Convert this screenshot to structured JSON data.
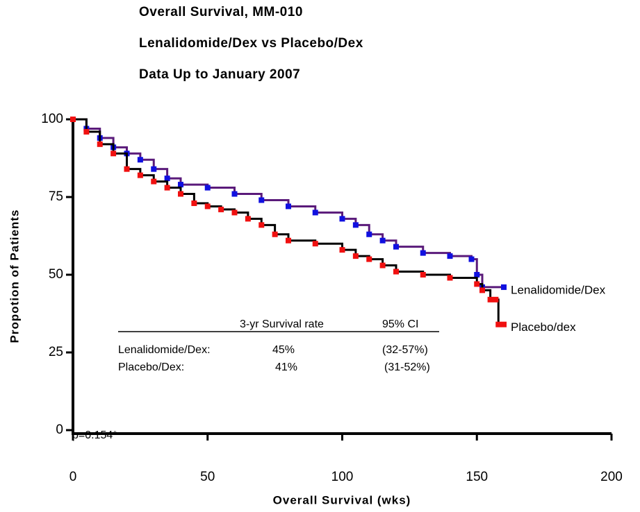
{
  "chart_data": {
    "type": "step",
    "title": "Overall  Survival,  MM-010",
    "subtitle": "Lenalidomide/Dex  vs Placebo/Dex",
    "subtitle2": "Data Up to January 2007",
    "x_label": "Overall  Survival  (wks)",
    "y_label": "Propotion  of  Patients",
    "xlim": [
      0,
      200
    ],
    "xticks": [
      0,
      50,
      100,
      150,
      200
    ],
    "ylim": [
      0,
      100
    ],
    "yticks": [
      0,
      25,
      50,
      75,
      100
    ],
    "series": [
      {
        "name": "Lenalidomide/Dex",
        "color": "#1010e0",
        "line_color": "#5a1a7a",
        "x": [
          0,
          5,
          10,
          15,
          20,
          25,
          30,
          35,
          40,
          50,
          60,
          70,
          80,
          90,
          100,
          105,
          110,
          115,
          120,
          130,
          140,
          148,
          150,
          152,
          160
        ],
        "values": [
          100,
          97,
          94,
          91,
          89,
          87,
          84,
          81,
          79,
          78,
          76,
          74,
          72,
          70,
          68,
          66,
          63,
          61,
          59,
          57,
          56,
          55,
          50,
          46,
          46
        ]
      },
      {
        "name": "Placebo/dex",
        "color": "#f01010",
        "line_color": "#000000",
        "x": [
          0,
          5,
          10,
          15,
          20,
          25,
          30,
          35,
          40,
          45,
          50,
          55,
          60,
          65,
          70,
          75,
          80,
          90,
          100,
          105,
          110,
          115,
          120,
          130,
          140,
          150,
          152,
          155,
          157,
          158,
          160
        ],
        "values": [
          100,
          96,
          92,
          89,
          84,
          82,
          80,
          78,
          76,
          73,
          72,
          71,
          70,
          68,
          66,
          63,
          61,
          60,
          58,
          56,
          55,
          53,
          51,
          50,
          49,
          47,
          45,
          42,
          42,
          34,
          34
        ]
      }
    ],
    "annotation": "p=0.154*",
    "table": {
      "header": [
        "3-yr Survival rate",
        "95%  CI"
      ],
      "rows": [
        [
          "Lenalidomide/Dex:",
          "45%",
          "(32-57%)"
        ],
        [
          "Placebo/Dex:",
          "41%",
          "(31-52%)"
        ]
      ]
    }
  }
}
